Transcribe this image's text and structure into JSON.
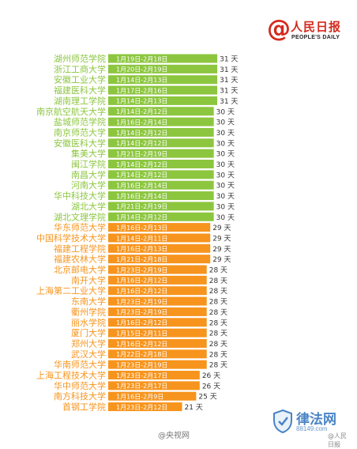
{
  "logo": {
    "symbol": "@",
    "name_cn": "人民日报",
    "name_en": "PEOPLE'S DAILY"
  },
  "colors": {
    "green": "#8cc63f",
    "orange": "#f7941d",
    "red": "#d42a1e"
  },
  "day_unit": "天",
  "watermarks": {
    "center": "@央视网",
    "site_name": "律法网",
    "site_url": "88149.com",
    "account": "@人民日报"
  },
  "chart_data": {
    "type": "bar",
    "orientation": "horizontal",
    "categories": [
      "湖州师范学院",
      "浙江工商大学",
      "安徽工业大学",
      "福建医科大学",
      "湖南理工学院",
      "南京航空航天大学",
      "盐城师范学院",
      "南京师范大学",
      "安徽医科大学",
      "集美大学",
      "闽江学院",
      "南昌大学",
      "河南大学",
      "华中科技大学",
      "湖北大学",
      "湖北文理学院",
      "华东师范大学",
      "中国科学技术大学",
      "福建工程学院",
      "福建农林大学",
      "北京邮电大学",
      "南开大学",
      "上海第二工业大学",
      "东南大学",
      "衢州学院",
      "丽水学院",
      "厦门大学",
      "郑州大学",
      "武汉大学",
      "华南师范大学",
      "上海工程技术大学",
      "华中师范大学",
      "南方科技大学",
      "首钢工学院"
    ],
    "date_ranges": [
      "1月19日-2月18日",
      "1月20日-2月19日",
      "1月14日-2月13日",
      "1月17日-2月16日",
      "1月14日-2月13日",
      "1月14日-2月12日",
      "1月16日-2月14日",
      "1月14日-2月12日",
      "1月14日-2月12日",
      "1月21日-2月19日",
      "1月14日-2月12日",
      "1月14日-2月12日",
      "1月16日-2月14日",
      "1月16日-2月14日",
      "1月21日-2月19日",
      "1月14日-2月12日",
      "1月16日-2月13日",
      "1月14日-2月11日",
      "1月16日-2月13日",
      "1月21日-2月18日",
      "1月23日-2月19日",
      "1月16日-2月12日",
      "1月16日-2月12日",
      "1月23日-2月19日",
      "1月23日-2月19日",
      "1月16日-2月12日",
      "1月15日-2月11日",
      "1月16日-2月12日",
      "1月22日-2月18日",
      "1月23日-2月19日",
      "1月23日-2月17日",
      "1月23日-2月17日",
      "1月16日-2月9日",
      "1月23日-2月12日"
    ],
    "values": [
      31,
      31,
      31,
      31,
      31,
      30,
      30,
      30,
      30,
      30,
      30,
      30,
      30,
      30,
      30,
      30,
      29,
      29,
      29,
      29,
      28,
      28,
      28,
      28,
      28,
      28,
      28,
      28,
      28,
      28,
      26,
      26,
      25,
      21
    ],
    "color_groups": [
      "green",
      "green",
      "green",
      "green",
      "green",
      "green",
      "green",
      "green",
      "green",
      "green",
      "green",
      "green",
      "green",
      "green",
      "green",
      "green",
      "orange",
      "orange",
      "orange",
      "orange",
      "orange",
      "orange",
      "orange",
      "orange",
      "orange",
      "orange",
      "orange",
      "orange",
      "orange",
      "orange",
      "orange",
      "orange",
      "orange",
      "orange"
    ]
  }
}
